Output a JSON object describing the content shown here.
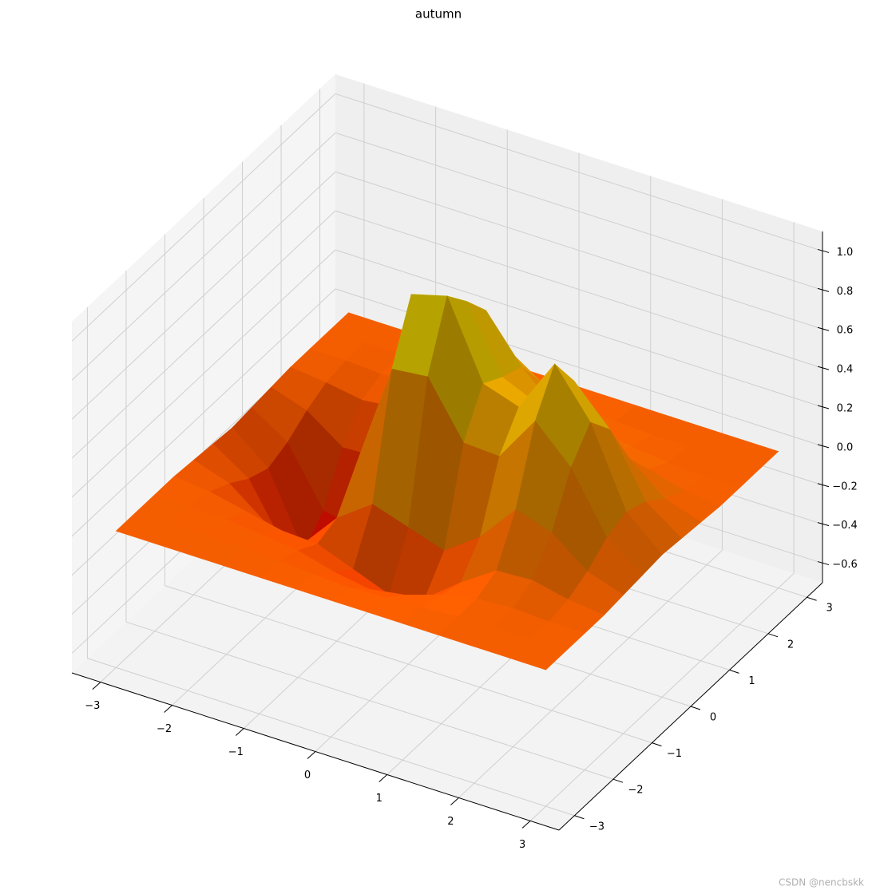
{
  "chart_data": {
    "type": "surface",
    "title": "autumn",
    "colormap": "autumn",
    "x": [
      -3,
      -2.5,
      -2,
      -1.5,
      -1,
      -0.5,
      0,
      0.5,
      1,
      1.5,
      2,
      2.5,
      3
    ],
    "y": [
      -3,
      -2.5,
      -2,
      -1.5,
      -1,
      -0.5,
      0,
      0.5,
      1,
      1.5,
      2,
      2.5,
      3
    ],
    "z": [
      [
        0,
        0,
        0,
        0,
        0,
        0,
        0,
        0,
        0,
        0,
        0,
        0,
        0
      ],
      [
        0,
        0,
        0,
        0,
        -0.01,
        -0.02,
        -0.03,
        -0.02,
        -0.01,
        0,
        0,
        0,
        0
      ],
      [
        0,
        0,
        -0.01,
        -0.03,
        -0.05,
        -0.1,
        -0.13,
        -0.1,
        -0.04,
        0,
        0.01,
        0,
        0
      ],
      [
        0,
        -0.02,
        -0.06,
        -0.1,
        -0.11,
        -0.18,
        -0.25,
        -0.21,
        -0.07,
        0.05,
        0.06,
        0.02,
        0
      ],
      [
        -0.01,
        -0.07,
        -0.21,
        -0.27,
        -0.07,
        0.06,
        0,
        -0.06,
        0.07,
        0.27,
        0.21,
        0.07,
        0.01
      ],
      [
        -0.02,
        -0.14,
        -0.43,
        -0.49,
        0.11,
        0.66,
        0.68,
        0.4,
        0.39,
        0.63,
        0.45,
        0.15,
        0.02
      ],
      [
        -0.03,
        -0.18,
        -0.55,
        -0.62,
        0.18,
        0.95,
        1.0,
        0.61,
        0.55,
        0.83,
        0.59,
        0.19,
        0.03
      ],
      [
        -0.02,
        -0.14,
        -0.43,
        -0.47,
        0.18,
        0.81,
        0.88,
        0.55,
        0.47,
        0.65,
        0.46,
        0.15,
        0.02
      ],
      [
        -0.01,
        -0.07,
        -0.2,
        -0.19,
        0.2,
        0.64,
        0.74,
        0.51,
        0.34,
        0.34,
        0.22,
        0.07,
        0.01
      ],
      [
        0,
        -0.02,
        -0.05,
        -0.03,
        0.15,
        0.38,
        0.46,
        0.34,
        0.19,
        0.12,
        0.07,
        0.02,
        0
      ],
      [
        0,
        0,
        -0.01,
        0,
        0.06,
        0.13,
        0.16,
        0.13,
        0.06,
        0.03,
        0.01,
        0,
        0
      ],
      [
        0,
        0,
        0,
        0,
        0.01,
        0.03,
        0.03,
        0.02,
        0.01,
        0,
        0,
        0,
        0
      ],
      [
        0,
        0,
        0,
        0,
        0,
        0,
        0,
        0,
        0,
        0,
        0,
        0,
        0
      ]
    ],
    "xlim": [
      -3.4,
      3.4
    ],
    "ylim": [
      -3.4,
      3.4
    ],
    "zlim": [
      -0.7,
      1.1
    ],
    "xticks": [
      {
        "value": -3,
        "label": "−3"
      },
      {
        "value": -2,
        "label": "−2"
      },
      {
        "value": -1,
        "label": "−1"
      },
      0,
      1,
      2,
      3
    ],
    "yticks": [
      {
        "value": -3,
        "label": "−3"
      },
      {
        "value": -2,
        "label": "−2"
      },
      {
        "value": -1,
        "label": "−1"
      },
      0,
      1,
      2,
      3
    ],
    "zticks": [
      {
        "value": -0.6,
        "label": "−0.6"
      },
      {
        "value": -0.4,
        "label": "−0.4"
      },
      {
        "value": -0.2,
        "label": "−0.2"
      },
      {
        "value": 0,
        "label": "0.0"
      },
      0.2,
      0.4,
      0.6,
      0.8,
      {
        "value": 1,
        "label": "1.0"
      }
    ],
    "grid": true
  },
  "watermark": "CSDN @nencbskk"
}
